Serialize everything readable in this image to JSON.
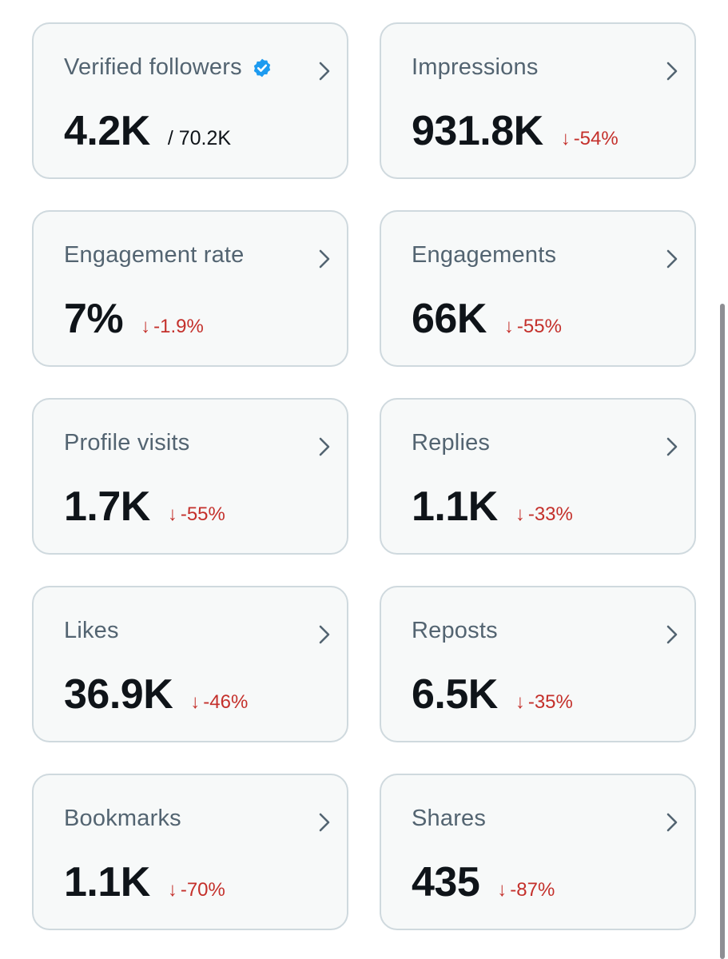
{
  "colors": {
    "card_bg": "#f7f9f9",
    "card_border": "#cfd9de",
    "label": "#536471",
    "value": "#0f1419",
    "negative": "#c4302b",
    "verified": "#1d9bf0"
  },
  "cards": [
    {
      "label": "Verified followers",
      "value": "4.2K",
      "total": "/ 70.2K",
      "icon": "verified-badge-icon"
    },
    {
      "label": "Impressions",
      "value": "931.8K",
      "arrow": "↓",
      "change": "-54%"
    },
    {
      "label": "Engagement rate",
      "value": "7%",
      "arrow": "↓",
      "change": "-1.9%"
    },
    {
      "label": "Engagements",
      "value": "66K",
      "arrow": "↓",
      "change": "-55%"
    },
    {
      "label": "Profile visits",
      "value": "1.7K",
      "arrow": "↓",
      "change": "-55%"
    },
    {
      "label": "Replies",
      "value": "1.1K",
      "arrow": "↓",
      "change": "-33%"
    },
    {
      "label": "Likes",
      "value": "36.9K",
      "arrow": "↓",
      "change": "-46%"
    },
    {
      "label": "Reposts",
      "value": "6.5K",
      "arrow": "↓",
      "change": "-35%"
    },
    {
      "label": "Bookmarks",
      "value": "1.1K",
      "arrow": "↓",
      "change": "-70%"
    },
    {
      "label": "Shares",
      "value": "435",
      "arrow": "↓",
      "change": "-87%"
    }
  ]
}
